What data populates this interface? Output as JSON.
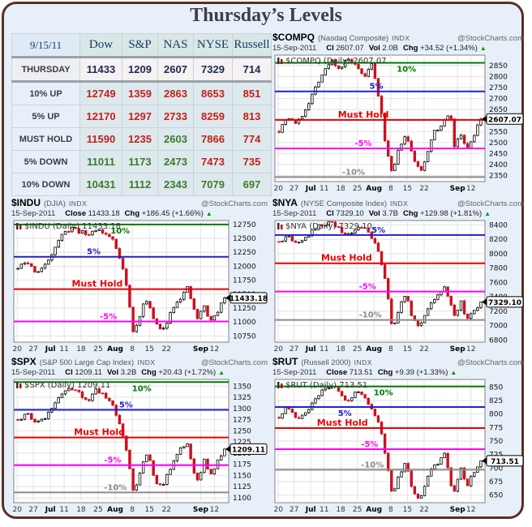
{
  "page": {
    "title": "Thursday’s Levels"
  },
  "colors": {
    "green": "#007800",
    "blue": "#2020cc",
    "red": "#e80000",
    "magenta": "#ff00ff",
    "gray": "#8a8a8a",
    "candle_down": "#cc1020",
    "candle_up_fill": "#ffffff",
    "candle_up_stroke": "#000000",
    "navy": "#1b2b4f",
    "table_red": "#c5201d",
    "table_green": "#3c7a2e"
  },
  "table": {
    "date": "9/15/11",
    "columns": [
      "Dow",
      "S&P",
      "NAS",
      "NYSE",
      "Russell"
    ],
    "rows": [
      {
        "label": "THURSDAY",
        "kind": "current",
        "cells": [
          {
            "v": "11433",
            "c": "navy"
          },
          {
            "v": "1209",
            "c": "navy"
          },
          {
            "v": "2607",
            "c": "navy"
          },
          {
            "v": "7329",
            "c": "navy"
          },
          {
            "v": "714",
            "c": "navy"
          }
        ]
      },
      {
        "label": "10% UP",
        "kind": "level",
        "cells": [
          {
            "v": "12749",
            "c": "red"
          },
          {
            "v": "1359",
            "c": "red"
          },
          {
            "v": "2863",
            "c": "red"
          },
          {
            "v": "8653",
            "c": "red"
          },
          {
            "v": "851",
            "c": "red"
          }
        ]
      },
      {
        "label": "5% UP",
        "kind": "level",
        "cells": [
          {
            "v": "12170",
            "c": "red"
          },
          {
            "v": "1297",
            "c": "red"
          },
          {
            "v": "2733",
            "c": "red"
          },
          {
            "v": "8259",
            "c": "red"
          },
          {
            "v": "813",
            "c": "red"
          }
        ]
      },
      {
        "label": "MUST HOLD",
        "kind": "level",
        "cells": [
          {
            "v": "11590",
            "c": "red"
          },
          {
            "v": "1235",
            "c": "red"
          },
          {
            "v": "2603",
            "c": "green"
          },
          {
            "v": "7866",
            "c": "red"
          },
          {
            "v": "774",
            "c": "red"
          }
        ]
      },
      {
        "label": "5% DOWN",
        "kind": "level",
        "cells": [
          {
            "v": "11011",
            "c": "green"
          },
          {
            "v": "1173",
            "c": "green"
          },
          {
            "v": "2473",
            "c": "green"
          },
          {
            "v": "7473",
            "c": "red"
          },
          {
            "v": "735",
            "c": "red"
          }
        ]
      },
      {
        "label": "10% DOWN",
        "kind": "level",
        "cells": [
          {
            "v": "10431",
            "c": "green"
          },
          {
            "v": "1112",
            "c": "green"
          },
          {
            "v": "2343",
            "c": "green"
          },
          {
            "v": "7079",
            "c": "green"
          },
          {
            "v": "697",
            "c": "green"
          }
        ]
      }
    ]
  },
  "xaxis": {
    "labels": [
      {
        "t": 0.005,
        "text": "20"
      },
      {
        "t": 0.082,
        "text": "27"
      },
      {
        "t": 0.164,
        "text": "Jul",
        "bold": true
      },
      {
        "t": 0.23,
        "text": "11"
      },
      {
        "t": 0.311,
        "text": "18"
      },
      {
        "t": 0.393,
        "text": "25"
      },
      {
        "t": 0.475,
        "text": "Aug",
        "bold": true
      },
      {
        "t": 0.557,
        "text": "8"
      },
      {
        "t": 0.639,
        "text": "15"
      },
      {
        "t": 0.721,
        "text": "22"
      },
      {
        "t": 0.885,
        "text": "Sep",
        "bold": true
      },
      {
        "t": 0.951,
        "text": "12"
      }
    ]
  },
  "chart_data": [
    {
      "id": "compq",
      "type": "candlestick",
      "symbol": "$COMPQ",
      "name": "(Nasdaq Composite)",
      "index_label": "INDX",
      "credit": "@StockCharts.com",
      "date": "15-Sep-2011",
      "stats": [
        {
          "label": "Cl",
          "value": "2607.07"
        },
        {
          "label": "Vol",
          "value": "2.0B"
        },
        {
          "label": "Chg",
          "value": "+34.52 (+1.34%)"
        }
      ],
      "arrow": "▲",
      "overlay": "$COMPQ (Daily) 2607.07",
      "tag": "2607.07",
      "close": 2607.07,
      "ymin": 2322,
      "ymax": 2898,
      "yticks": [
        2850,
        2800,
        2750,
        2700,
        2650,
        2600,
        2550,
        2500,
        2450,
        2400,
        2350
      ],
      "levels": [
        {
          "value": 2863,
          "color": "green",
          "label": "10%",
          "x": 0.58,
          "below": true
        },
        {
          "value": 2733,
          "color": "blue",
          "label": "5%",
          "x": 0.45
        },
        {
          "value": 2603,
          "color": "red",
          "label": "Must Hold",
          "x": 0.3
        },
        {
          "value": 2473,
          "color": "magenta",
          "label": "-5%",
          "x": 0.38
        },
        {
          "value": 2343,
          "color": "gray",
          "label": "-10%",
          "x": 0.32
        }
      ],
      "anchors": [
        [
          0,
          2555
        ],
        [
          0.04,
          2620
        ],
        [
          0.09,
          2585
        ],
        [
          0.13,
          2650
        ],
        [
          0.2,
          2790
        ],
        [
          0.26,
          2875
        ],
        [
          0.3,
          2835
        ],
        [
          0.34,
          2880
        ],
        [
          0.38,
          2845
        ],
        [
          0.42,
          2795
        ],
        [
          0.46,
          2855
        ],
        [
          0.5,
          2680
        ],
        [
          0.53,
          2480
        ],
        [
          0.56,
          2352
        ],
        [
          0.6,
          2490
        ],
        [
          0.63,
          2530
        ],
        [
          0.66,
          2445
        ],
        [
          0.7,
          2360
        ],
        [
          0.73,
          2440
        ],
        [
          0.76,
          2540
        ],
        [
          0.79,
          2560
        ],
        [
          0.82,
          2600
        ],
        [
          0.85,
          2630
        ],
        [
          0.87,
          2480
        ],
        [
          0.9,
          2540
        ],
        [
          0.93,
          2470
        ],
        [
          0.96,
          2520
        ],
        [
          1,
          2607.07
        ]
      ],
      "wiggle": 18,
      "seed": 7
    },
    {
      "id": "indu",
      "type": "candlestick",
      "symbol": "$INDU",
      "name": "(DJIA)",
      "index_label": "INDX",
      "credit": "@StockCharts.com",
      "date": "15-Sep-2011",
      "stats": [
        {
          "label": "Close",
          "value": "11433.18"
        },
        {
          "label": "Chg",
          "value": "+186.45 (+1.66%)"
        }
      ],
      "arrow": "▲",
      "overlay": "$INDU (Daily) 11433.18",
      "tag": "11433.18",
      "close": 11433.18,
      "ymin": 10640,
      "ymax": 12820,
      "yticks": [
        12750,
        12500,
        12250,
        12000,
        11750,
        11500,
        11250,
        11000,
        10750
      ],
      "levels": [
        {
          "value": 12749,
          "color": "green",
          "label": "10%",
          "x": 0.45,
          "below": true
        },
        {
          "value": 12170,
          "color": "blue",
          "label": "5%",
          "x": 0.34
        },
        {
          "value": 11590,
          "color": "red",
          "label": "Must Hold",
          "x": 0.27
        },
        {
          "value": 11011,
          "color": "magenta",
          "label": "-5%",
          "x": 0.4
        }
      ],
      "anchors": [
        [
          0,
          11960
        ],
        [
          0.04,
          12080
        ],
        [
          0.09,
          11890
        ],
        [
          0.13,
          12000
        ],
        [
          0.2,
          12500
        ],
        [
          0.26,
          12700
        ],
        [
          0.3,
          12620
        ],
        [
          0.34,
          12560
        ],
        [
          0.38,
          12680
        ],
        [
          0.42,
          12580
        ],
        [
          0.46,
          12480
        ],
        [
          0.5,
          12100
        ],
        [
          0.53,
          11550
        ],
        [
          0.56,
          10760
        ],
        [
          0.6,
          11250
        ],
        [
          0.63,
          11420
        ],
        [
          0.66,
          11000
        ],
        [
          0.7,
          10820
        ],
        [
          0.73,
          11100
        ],
        [
          0.76,
          11350
        ],
        [
          0.79,
          11450
        ],
        [
          0.82,
          11600
        ],
        [
          0.85,
          11250
        ],
        [
          0.87,
          11050
        ],
        [
          0.9,
          11300
        ],
        [
          0.93,
          11000
        ],
        [
          0.96,
          11150
        ],
        [
          1,
          11433.18
        ]
      ],
      "wiggle": 80,
      "seed": 11
    },
    {
      "id": "nya",
      "type": "candlestick",
      "symbol": "$NYA",
      "name": "(NYSE Composite Index)",
      "index_label": "INDX",
      "credit": "@StockCharts.com",
      "date": "15-Sep-2011",
      "stats": [
        {
          "label": "Cl",
          "value": "7329.10"
        },
        {
          "label": "Vol",
          "value": "3.7B"
        },
        {
          "label": "Chg",
          "value": "+129.98 (+1.81%)"
        }
      ],
      "arrow": "▲",
      "overlay": "$NYA (Daily) 7329.10",
      "tag": "7329.10",
      "close": 7329.1,
      "ymin": 6770,
      "ymax": 8460,
      "yticks": [
        8400,
        8200,
        8000,
        7800,
        7600,
        7400,
        7200,
        7000,
        6800
      ],
      "levels": [
        {
          "value": 8259,
          "color": "blue",
          "label": "5%",
          "x": 0.46
        },
        {
          "value": 7866,
          "color": "red",
          "label": "Must Hold",
          "x": 0.22
        },
        {
          "value": 7473,
          "color": "magenta",
          "label": "-5%",
          "x": 0.4
        },
        {
          "value": 7079,
          "color": "gray",
          "label": "-10%",
          "x": 0.4
        }
      ],
      "anchors": [
        [
          0,
          8160
        ],
        [
          0.04,
          8260
        ],
        [
          0.09,
          8130
        ],
        [
          0.13,
          8230
        ],
        [
          0.2,
          8400
        ],
        [
          0.26,
          8430
        ],
        [
          0.3,
          8340
        ],
        [
          0.34,
          8250
        ],
        [
          0.38,
          8330
        ],
        [
          0.42,
          8370
        ],
        [
          0.46,
          8230
        ],
        [
          0.5,
          7950
        ],
        [
          0.53,
          7600
        ],
        [
          0.56,
          6950
        ],
        [
          0.6,
          7280
        ],
        [
          0.63,
          7420
        ],
        [
          0.66,
          7120
        ],
        [
          0.7,
          6980
        ],
        [
          0.73,
          7180
        ],
        [
          0.76,
          7350
        ],
        [
          0.79,
          7440
        ],
        [
          0.82,
          7550
        ],
        [
          0.85,
          7280
        ],
        [
          0.87,
          7120
        ],
        [
          0.9,
          7350
        ],
        [
          0.93,
          7080
        ],
        [
          0.96,
          7180
        ],
        [
          1,
          7329.1
        ]
      ],
      "wiggle": 55,
      "seed": 13
    },
    {
      "id": "spx",
      "type": "candlestick",
      "symbol": "$SPX",
      "name": "(S&P 500 Large Cap Index)",
      "index_label": "INDX",
      "credit": "@StockCharts.com",
      "date": "15-Sep-2011",
      "stats": [
        {
          "label": "Cl",
          "value": "1209.11"
        },
        {
          "label": "Vol",
          "value": "3.2B"
        },
        {
          "label": "Chg",
          "value": "+20.43 (+1.72%)"
        }
      ],
      "arrow": "▲",
      "overlay": "$SPX (Daily) 1209.11",
      "tag": "1209.11",
      "close": 1209.11,
      "ymin": 1089,
      "ymax": 1365,
      "yticks": [
        1350,
        1325,
        1300,
        1275,
        1250,
        1225,
        1200,
        1175,
        1150,
        1125,
        1100
      ],
      "levels": [
        {
          "value": 1359,
          "color": "green",
          "label": "10%",
          "x": 0.55,
          "below": true
        },
        {
          "value": 1297,
          "color": "blue",
          "label": "5%",
          "x": 0.49
        },
        {
          "value": 1235,
          "color": "red",
          "label": "Must Hold",
          "x": 0.28
        },
        {
          "value": 1173,
          "color": "magenta",
          "label": "-5%",
          "x": 0.42
        },
        {
          "value": 1112,
          "color": "gray",
          "label": "-10%",
          "x": 0.42
        }
      ],
      "anchors": [
        [
          0,
          1272
        ],
        [
          0.04,
          1290
        ],
        [
          0.09,
          1268
        ],
        [
          0.13,
          1280
        ],
        [
          0.2,
          1330
        ],
        [
          0.26,
          1345
        ],
        [
          0.3,
          1332
        ],
        [
          0.34,
          1318
        ],
        [
          0.38,
          1343
        ],
        [
          0.42,
          1330
        ],
        [
          0.46,
          1310
        ],
        [
          0.5,
          1255
        ],
        [
          0.53,
          1200
        ],
        [
          0.56,
          1108
        ],
        [
          0.6,
          1170
        ],
        [
          0.63,
          1205
        ],
        [
          0.66,
          1140
        ],
        [
          0.7,
          1122
        ],
        [
          0.73,
          1160
        ],
        [
          0.76,
          1190
        ],
        [
          0.79,
          1210
        ],
        [
          0.82,
          1225
        ],
        [
          0.85,
          1160
        ],
        [
          0.87,
          1135
        ],
        [
          0.9,
          1185
        ],
        [
          0.93,
          1150
        ],
        [
          0.96,
          1175
        ],
        [
          1,
          1209.11
        ]
      ],
      "wiggle": 9,
      "seed": 17
    },
    {
      "id": "rut",
      "type": "candlestick",
      "symbol": "$RUT",
      "name": "(Russell 2000)",
      "index_label": "INDX",
      "credit": "@StockCharts.com",
      "date": "15-Sep-2011",
      "stats": [
        {
          "label": "Close",
          "value": "713.51"
        },
        {
          "label": "Chg",
          "value": "+9.39 (+1.33%)"
        }
      ],
      "arrow": "▲",
      "overlay": "$RUT (Daily) 713.51",
      "tag": "713.51",
      "close": 713.51,
      "ymin": 636,
      "ymax": 864,
      "yticks": [
        850,
        825,
        800,
        775,
        750,
        725,
        700,
        675,
        650
      ],
      "levels": [
        {
          "value": 851,
          "color": "green",
          "label": "10%",
          "x": 0.47,
          "below": true
        },
        {
          "value": 813,
          "color": "blue",
          "label": "5%",
          "x": 0.3,
          "below": true
        },
        {
          "value": 774,
          "color": "red",
          "label": "Must Hold",
          "x": 0.2
        },
        {
          "value": 735,
          "color": "magenta",
          "label": "-5%",
          "x": 0.41
        },
        {
          "value": 697,
          "color": "gray",
          "label": "-10%",
          "x": 0.41
        }
      ],
      "anchors": [
        [
          0,
          795
        ],
        [
          0.04,
          812
        ],
        [
          0.09,
          788
        ],
        [
          0.13,
          800
        ],
        [
          0.2,
          838
        ],
        [
          0.26,
          855
        ],
        [
          0.3,
          840
        ],
        [
          0.34,
          822
        ],
        [
          0.38,
          842
        ],
        [
          0.42,
          832
        ],
        [
          0.46,
          808
        ],
        [
          0.5,
          775
        ],
        [
          0.53,
          720
        ],
        [
          0.56,
          650
        ],
        [
          0.6,
          690
        ],
        [
          0.63,
          715
        ],
        [
          0.66,
          660
        ],
        [
          0.7,
          642
        ],
        [
          0.73,
          680
        ],
        [
          0.76,
          700
        ],
        [
          0.79,
          710
        ],
        [
          0.82,
          730
        ],
        [
          0.85,
          672
        ],
        [
          0.87,
          655
        ],
        [
          0.9,
          700
        ],
        [
          0.93,
          665
        ],
        [
          0.96,
          690
        ],
        [
          1,
          713.51
        ]
      ],
      "wiggle": 7,
      "seed": 23
    }
  ]
}
